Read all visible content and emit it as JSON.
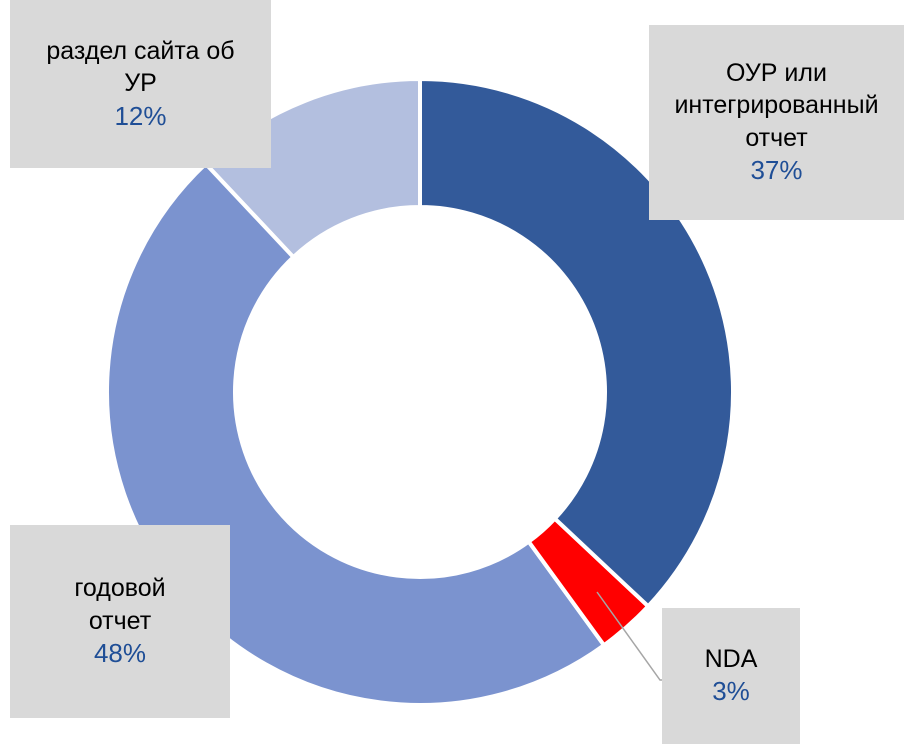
{
  "chart_data": {
    "type": "donut",
    "categories": [
      "ОУР или интегрированный отчет",
      "NDA",
      "годовой отчет",
      "раздел сайта об УР"
    ],
    "values": [
      37,
      3,
      48,
      12
    ],
    "value_labels": [
      "37%",
      "3%",
      "48%",
      "12%"
    ],
    "colors": [
      "#335a9a",
      "#ff0000",
      "#7b93cf",
      "#b3bfdf"
    ]
  }
}
